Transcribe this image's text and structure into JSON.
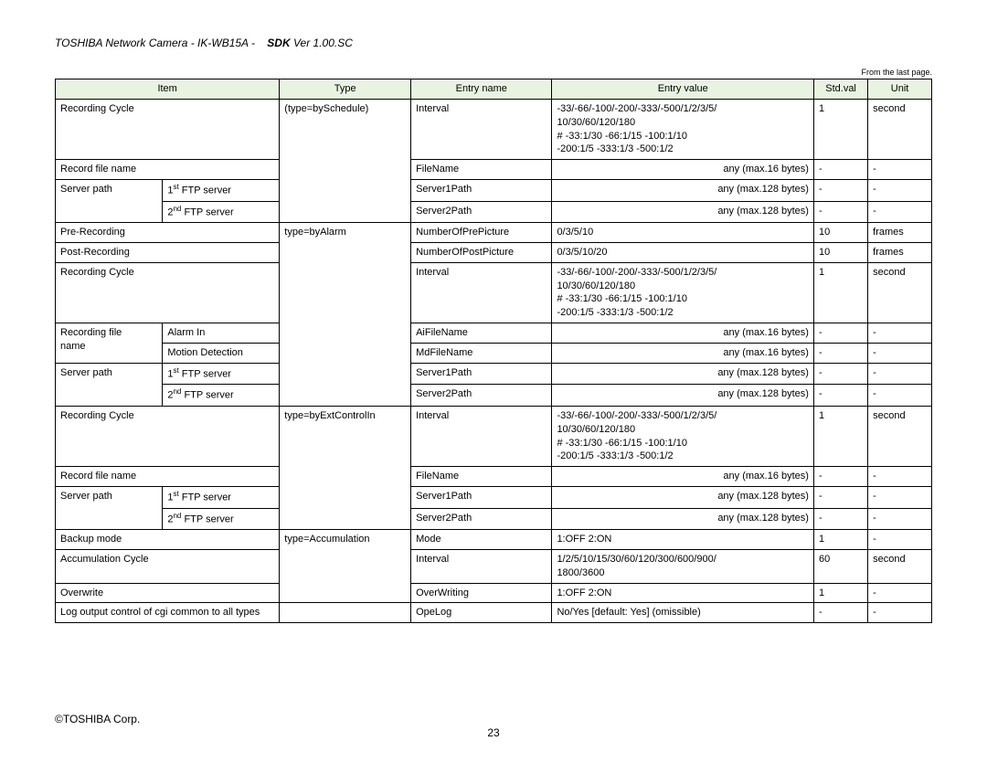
{
  "header": {
    "left": "TOSHIBA Network Camera - IK-WB15A -",
    "bold": "SDK",
    "rest": " Ver 1.00.SC"
  },
  "from_last": "From the last page.",
  "columns": [
    "Item",
    "Type",
    "Entry name",
    "Entry value",
    "Std.val",
    "Unit"
  ],
  "rows": [
    {
      "i1": "Recording Cycle",
      "i2": "",
      "type": "(type=bySchedule)",
      "ename": "Interval",
      "eval": "-33/-66/-100/-200/-333/-500/1/2/3/5/\n10/30/60/120/180\n# -33:1/30    -66:1/15    -100:1/10\n-200:1/5    -333:1/3    -500:1/2",
      "std": "1",
      "unit": "second"
    },
    {
      "i1": "Record file name",
      "i2": "",
      "type": "",
      "ename": "FileName",
      "eval_right": "any (max.16 bytes)",
      "std": "-",
      "unit": "-"
    },
    {
      "i1": "Server path",
      "i2": "1ST FTP server",
      "type": "",
      "ename": "Server1Path",
      "eval_right": "any (max.128 bytes)",
      "std": "-",
      "unit": "-",
      "sup1": "st"
    },
    {
      "i1": "",
      "i2": "2ND FTP server",
      "type": "",
      "ename": "Server2Path",
      "eval_right": "any (max.128 bytes)",
      "std": "-",
      "unit": "-",
      "sup1": "nd"
    },
    {
      "i1": "Pre-Recording",
      "i2": "",
      "type": "type=byAlarm",
      "ename": "NumberOfPrePicture",
      "eval": "0/3/5/10",
      "std": "10",
      "unit": "frames"
    },
    {
      "i1": "Post-Recording",
      "i2": "",
      "type": "",
      "ename": "NumberOfPostPicture",
      "eval": "0/3/5/10/20",
      "std": "10",
      "unit": "frames"
    },
    {
      "i1": "Recording Cycle",
      "i2": "",
      "type": "",
      "ename": "Interval",
      "eval": "-33/-66/-100/-200/-333/-500/1/2/3/5/\n10/30/60/120/180\n# -33:1/30    -66:1/15    -100:1/10\n-200:1/5    -333:1/3    -500:1/2",
      "std": "1",
      "unit": "second"
    },
    {
      "i1": "Recording file",
      "i2": "Alarm In",
      "type": "",
      "ename": "AiFileName",
      "eval_right": "any (max.16 bytes)",
      "std": "-",
      "unit": "-"
    },
    {
      "i1": "name",
      "i2": "Motion Detection",
      "type": "",
      "ename": "MdFileName",
      "eval_right": "any (max.16 bytes)",
      "std": "-",
      "unit": "-"
    },
    {
      "i1": "Server path",
      "i2": "1ST FTP server",
      "type": "",
      "ename": "Server1Path",
      "eval_right": "any (max.128 bytes)",
      "std": "-",
      "unit": "-",
      "sup1": "st"
    },
    {
      "i1": "",
      "i2": "2ND FTP server",
      "type": "",
      "ename": "Server2Path",
      "eval_right": "any (max.128 bytes)",
      "std": "-",
      "unit": "-",
      "sup1": "nd"
    },
    {
      "i1": "Recording Cycle",
      "i2": "",
      "type": "type=byExtControlIn",
      "ename": "Interval",
      "eval": "-33/-66/-100/-200/-333/-500/1/2/3/5/\n10/30/60/120/180\n# -33:1/30    -66:1/15    -100:1/10\n-200:1/5    -333:1/3    -500:1/2",
      "std": "1",
      "unit": "second"
    },
    {
      "i1": "Record file name",
      "i2": "",
      "type": "",
      "ename": "FileName",
      "eval_right": "any (max.16 bytes)",
      "std": "-",
      "unit": "-"
    },
    {
      "i1": "Server path",
      "i2": "1ST FTP server",
      "type": "",
      "ename": "Server1Path",
      "eval_right": "any (max.128 bytes)",
      "std": "-",
      "unit": "-",
      "sup1": "st"
    },
    {
      "i1": "",
      "i2": "2ND FTP server",
      "type": "",
      "ename": "Server2Path",
      "eval_right": "any (max.128 bytes)",
      "std": "-",
      "unit": "-",
      "sup1": "nd"
    },
    {
      "i1": "Backup mode",
      "i2": "",
      "type": "type=Accumulation",
      "ename": "Mode",
      "eval": "1:OFF    2:ON",
      "std": "1",
      "unit": "-"
    },
    {
      "i1": "Accumulation Cycle",
      "i2": "",
      "type": "",
      "ename": "Interval",
      "eval": "1/2/5/10/15/30/60/120/300/600/900/\n1800/3600",
      "std": "60",
      "unit": "second"
    },
    {
      "i1": "Overwrite",
      "i2": "",
      "type": "",
      "ename": "OverWriting",
      "eval": "1:OFF 2:ON",
      "std": "1",
      "unit": "-"
    },
    {
      "i1_span": "Log output control of cgi common to all types",
      "type": "",
      "ename": "OpeLog",
      "eval": "No/Yes [default: Yes] (omissible)",
      "std": "-",
      "unit": "-"
    }
  ],
  "footer": {
    "copyright": "©TOSHIBA Corp.",
    "page": "23"
  },
  "style": {
    "header_bg": "#e8f4e0",
    "border_color": "#000000",
    "font_size_body": 11,
    "font_size_header": 12
  }
}
